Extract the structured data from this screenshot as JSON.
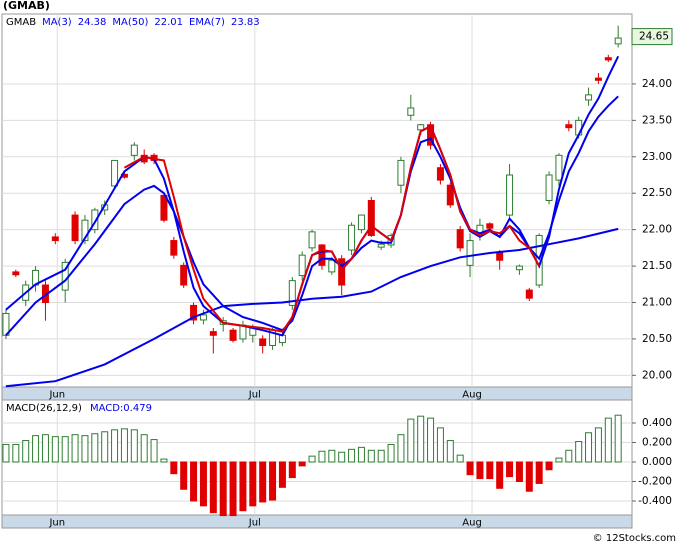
{
  "title": "(GMAB)",
  "footer": "© 12Stocks.com",
  "chart_data": [
    {
      "type": "candlestick",
      "symbol": "GMAB",
      "open": [
        20.55,
        21.42,
        21.03,
        21.24,
        21.24,
        21.9,
        21.17,
        22.2,
        21.85,
        22.0,
        22.27,
        22.6,
        22.76,
        23.02,
        23.02,
        23.02,
        22.47,
        21.85,
        21.51,
        20.96,
        20.76,
        20.6,
        20.7,
        20.62,
        20.5,
        20.55,
        20.5,
        20.41,
        20.45,
        20.96,
        21.37,
        21.75,
        21.79,
        21.42,
        21.6,
        21.72,
        22.0,
        22.4,
        21.76,
        21.79,
        22.61,
        23.57,
        23.37,
        23.44,
        22.85,
        22.61,
        22.0,
        21.51,
        21.92,
        22.08,
        21.69,
        22.2,
        21.45,
        21.17,
        21.24,
        22.4,
        22.68,
        23.44,
        23.3,
        23.78,
        24.08,
        24.36,
        24.55
      ],
      "high": [
        20.9,
        21.45,
        21.3,
        21.5,
        21.3,
        21.95,
        21.6,
        22.25,
        22.2,
        22.3,
        22.4,
        22.95,
        22.8,
        23.2,
        23.1,
        23.05,
        22.5,
        21.9,
        21.55,
        21.0,
        20.9,
        20.65,
        20.8,
        20.65,
        20.75,
        20.7,
        20.55,
        20.65,
        20.6,
        21.35,
        21.7,
        22.0,
        21.8,
        21.62,
        21.65,
        22.1,
        22.2,
        22.45,
        21.85,
        21.95,
        23.0,
        23.85,
        23.45,
        23.48,
        22.9,
        22.65,
        22.05,
        21.95,
        22.15,
        22.1,
        21.72,
        22.9,
        21.52,
        21.2,
        21.95,
        22.8,
        23.05,
        23.5,
        23.55,
        23.95,
        24.15,
        24.4,
        24.8
      ],
      "low": [
        20.5,
        21.35,
        20.95,
        21.15,
        20.75,
        21.8,
        21.0,
        21.8,
        21.8,
        21.95,
        22.2,
        22.55,
        22.7,
        22.95,
        22.9,
        22.9,
        22.1,
        21.6,
        21.2,
        20.7,
        20.7,
        20.3,
        20.6,
        20.45,
        20.45,
        20.45,
        20.3,
        20.35,
        20.4,
        20.9,
        21.3,
        21.7,
        21.45,
        21.38,
        21.1,
        21.65,
        21.95,
        21.9,
        21.72,
        21.75,
        22.5,
        23.5,
        23.3,
        23.1,
        22.62,
        22.3,
        21.7,
        21.35,
        21.85,
        21.98,
        21.45,
        22.15,
        21.38,
        21.02,
        21.2,
        22.35,
        22.6,
        23.35,
        23.25,
        23.7,
        24.0,
        24.3,
        24.5
      ],
      "close": [
        20.85,
        21.38,
        21.24,
        21.44,
        21.0,
        21.85,
        21.55,
        21.85,
        22.13,
        22.27,
        22.34,
        22.95,
        22.72,
        23.16,
        22.93,
        22.95,
        22.13,
        21.65,
        21.24,
        20.76,
        20.83,
        20.55,
        20.75,
        20.48,
        20.69,
        20.65,
        20.41,
        20.62,
        20.55,
        21.3,
        21.65,
        21.97,
        21.51,
        21.58,
        21.24,
        22.06,
        22.2,
        21.92,
        21.8,
        21.92,
        22.95,
        23.67,
        23.44,
        23.16,
        22.68,
        22.34,
        21.75,
        21.85,
        22.06,
        22.02,
        21.58,
        22.75,
        21.5,
        21.06,
        21.92,
        22.75,
        23.02,
        23.4,
        23.5,
        23.85,
        24.05,
        24.33,
        24.63
      ],
      "up_color": "#2e7d32",
      "down_color": "#e00000",
      "series": [
        {
          "name": "MA(3)",
          "last_value": 24.38,
          "color": "#0000ee",
          "x": [
            0,
            3,
            6,
            9,
            12,
            14,
            15,
            16,
            17,
            18,
            19,
            20,
            22,
            24,
            26,
            28,
            29,
            30,
            31,
            32,
            33,
            34,
            35,
            36,
            37,
            38,
            39,
            40,
            41,
            42,
            43,
            44,
            45,
            46,
            47,
            48,
            49,
            50,
            51,
            52,
            53,
            54,
            55,
            56,
            57,
            58,
            59,
            60,
            61,
            62
          ],
          "values": [
            20.9,
            21.25,
            21.45,
            22.1,
            22.8,
            23.0,
            22.97,
            22.7,
            22.25,
            21.7,
            21.2,
            20.95,
            20.72,
            20.68,
            20.62,
            20.55,
            20.8,
            21.25,
            21.65,
            21.7,
            21.7,
            21.45,
            21.6,
            21.85,
            22.05,
            21.95,
            21.85,
            22.2,
            22.85,
            23.35,
            23.42,
            23.1,
            22.75,
            22.25,
            21.98,
            21.9,
            21.98,
            21.9,
            22.05,
            21.95,
            21.75,
            21.5,
            21.9,
            22.55,
            23.05,
            23.3,
            23.58,
            23.8,
            24.1,
            24.38
          ]
        },
        {
          "name": "MA(50)",
          "last_value": 22.01,
          "color": "#0000ee",
          "x": [
            0,
            5,
            10,
            15,
            19,
            22,
            25,
            28,
            31,
            34,
            37,
            40,
            43,
            46,
            49,
            52,
            55,
            58,
            62
          ],
          "values": [
            19.85,
            19.92,
            20.15,
            20.5,
            20.8,
            20.95,
            20.98,
            21.0,
            21.05,
            21.08,
            21.15,
            21.35,
            21.5,
            21.62,
            21.68,
            21.72,
            21.8,
            21.88,
            22.01
          ]
        },
        {
          "name": "EMA(7)",
          "last_value": 23.83,
          "color": "#0000ee",
          "x": [
            0,
            3,
            6,
            9,
            12,
            14,
            15,
            16,
            17,
            18,
            19,
            20,
            22,
            24,
            26,
            28,
            29,
            30,
            31,
            32,
            33,
            34,
            35,
            36,
            37,
            38,
            39,
            40,
            41,
            42,
            43,
            44,
            45,
            46,
            47,
            48,
            49,
            50,
            51,
            52,
            53,
            54,
            55,
            56,
            57,
            58,
            59,
            60,
            61,
            62
          ],
          "values": [
            20.55,
            21.0,
            21.3,
            21.8,
            22.35,
            22.55,
            22.6,
            22.5,
            22.25,
            21.9,
            21.55,
            21.25,
            20.95,
            20.8,
            20.72,
            20.62,
            20.75,
            21.1,
            21.5,
            21.6,
            21.6,
            21.5,
            21.6,
            21.75,
            21.85,
            21.82,
            21.82,
            22.2,
            22.8,
            23.2,
            23.25,
            23.0,
            22.7,
            22.3,
            22.0,
            21.95,
            22.0,
            21.9,
            22.15,
            22.0,
            21.75,
            21.6,
            21.95,
            22.4,
            22.8,
            23.05,
            23.35,
            23.55,
            23.7,
            23.83
          ]
        },
        {
          "color": "#e00000",
          "x": [
            12,
            14,
            15,
            16,
            17,
            18,
            19,
            20,
            22,
            24,
            26,
            28,
            29,
            30,
            31,
            32,
            33,
            34,
            35,
            36,
            37,
            38,
            39,
            40,
            41,
            42,
            43,
            44,
            45,
            46,
            47,
            48,
            49,
            50,
            51,
            52,
            53,
            54
          ],
          "values": [
            22.85,
            23.0,
            22.97,
            22.95,
            22.45,
            21.9,
            21.45,
            21.05,
            20.72,
            20.68,
            20.65,
            20.6,
            20.8,
            21.25,
            21.65,
            21.72,
            21.7,
            21.45,
            21.6,
            21.85,
            22.05,
            21.95,
            21.85,
            22.2,
            22.85,
            23.35,
            23.42,
            23.1,
            22.75,
            22.25,
            22.0,
            21.92,
            21.98,
            21.95,
            22.05,
            21.85,
            21.75,
            21.5
          ]
        }
      ],
      "price_tag": 24.65,
      "xlim": [
        -0.4,
        63.4
      ],
      "ylim": [
        19.84,
        24.96
      ],
      "yticks": [
        {
          "value": 20,
          "label": "20.00"
        },
        {
          "value": 20.5,
          "label": "20.50"
        },
        {
          "value": 21,
          "label": "21.00"
        },
        {
          "value": 21.5,
          "label": "21.50"
        },
        {
          "value": 22,
          "label": "22.00"
        },
        {
          "value": 22.5,
          "label": "22.50"
        },
        {
          "value": 23,
          "label": "23.00"
        },
        {
          "value": 23.5,
          "label": "23.50"
        },
        {
          "value": 24,
          "label": "24.00"
        }
      ],
      "xticks": [
        {
          "value": 5.2,
          "label": "Jun"
        },
        {
          "value": 25.2,
          "label": "Jul"
        },
        {
          "value": 47.2,
          "label": "Aug"
        }
      ],
      "grid": true
    },
    {
      "type": "bar",
      "label": "MACD(26,12,9)",
      "value_label": "MACD:0.479",
      "values": [
        0.18,
        0.18,
        0.22,
        0.27,
        0.28,
        0.26,
        0.26,
        0.28,
        0.27,
        0.29,
        0.31,
        0.33,
        0.34,
        0.33,
        0.28,
        0.23,
        0.03,
        -0.12,
        -0.28,
        -0.4,
        -0.45,
        -0.52,
        -0.55,
        -0.55,
        -0.5,
        -0.45,
        -0.41,
        -0.39,
        -0.26,
        -0.16,
        -0.04,
        0.06,
        0.11,
        0.12,
        0.1,
        0.13,
        0.15,
        0.12,
        0.12,
        0.18,
        0.28,
        0.44,
        0.47,
        0.45,
        0.35,
        0.22,
        0.07,
        -0.13,
        -0.17,
        -0.17,
        -0.27,
        -0.15,
        -0.2,
        -0.3,
        -0.22,
        -0.08,
        0.04,
        0.12,
        0.21,
        0.3,
        0.35,
        0.45,
        0.48
      ],
      "up_color": "#2e7d32",
      "down_color": "#e00000",
      "xlim": [
        -0.4,
        63.4
      ],
      "ylim": [
        -0.544,
        0.636
      ],
      "yticks": [
        {
          "value": -0.4,
          "label": "-0.400"
        },
        {
          "value": -0.2,
          "label": "-0.200"
        },
        {
          "value": 0,
          "label": "0.000"
        },
        {
          "value": 0.2,
          "label": "0.200"
        },
        {
          "value": 0.4,
          "label": "0.400"
        }
      ],
      "xticks": [
        {
          "value": 5.2,
          "label": "Jun"
        },
        {
          "value": 25.2,
          "label": "Jul"
        },
        {
          "value": 47.2,
          "label": "Aug"
        }
      ],
      "grid": true
    }
  ]
}
